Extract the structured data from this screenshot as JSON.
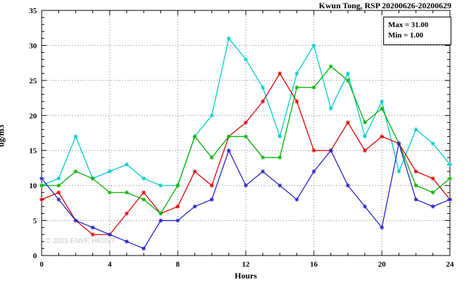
{
  "chart_data": {
    "type": "line",
    "title": "Kwun Tong, RSP 20200626-20200629",
    "xlabel": "Hours",
    "ylabel": "ug/m3",
    "xlim": [
      0,
      24
    ],
    "ylim": [
      0,
      35
    ],
    "x_ticks": [
      0,
      4,
      8,
      12,
      16,
      20,
      24
    ],
    "y_ticks": [
      0,
      5,
      10,
      15,
      20,
      25,
      30,
      35
    ],
    "grid": true,
    "legend": {
      "max": "Max = 31.00",
      "min": "Min = 1.00"
    },
    "watermark": "© 2025 ENVF, HKUST",
    "x": [
      0,
      1,
      2,
      3,
      4,
      5,
      6,
      7,
      8,
      9,
      10,
      11,
      12,
      13,
      14,
      15,
      16,
      17,
      18,
      19,
      20,
      21,
      22,
      23,
      24
    ],
    "series": [
      {
        "name": "cyan-series",
        "color": "#00CCCC",
        "values": [
          10,
          11,
          17,
          11,
          12,
          13,
          11,
          10,
          10,
          17,
          20,
          31,
          28,
          24,
          17,
          26,
          30,
          21,
          26,
          17,
          22,
          12,
          18,
          16,
          13
        ]
      },
      {
        "name": "red-series",
        "color": "#DD0000",
        "values": [
          8,
          9,
          5,
          3,
          3,
          6,
          9,
          6,
          7,
          12,
          10,
          17,
          19,
          22,
          26,
          22,
          15,
          15,
          19,
          15,
          17,
          16,
          12,
          11,
          8
        ]
      },
      {
        "name": "green-series",
        "color": "#00B300",
        "values": [
          10,
          10,
          12,
          11,
          9,
          9,
          8,
          6,
          10,
          17,
          14,
          17,
          17,
          14,
          14,
          24,
          24,
          27,
          25,
          19,
          21,
          16,
          10,
          9,
          11
        ]
      },
      {
        "name": "blue-series",
        "color": "#2222CC",
        "values": [
          11,
          8,
          5,
          4,
          3,
          2,
          1,
          5,
          5,
          7,
          8,
          15,
          10,
          12,
          10,
          8,
          12,
          15,
          10,
          7,
          4,
          16,
          8,
          7,
          8
        ]
      }
    ],
    "colors": {
      "grid": "#777777",
      "axis": "#000000",
      "background": "#ffffff"
    }
  }
}
